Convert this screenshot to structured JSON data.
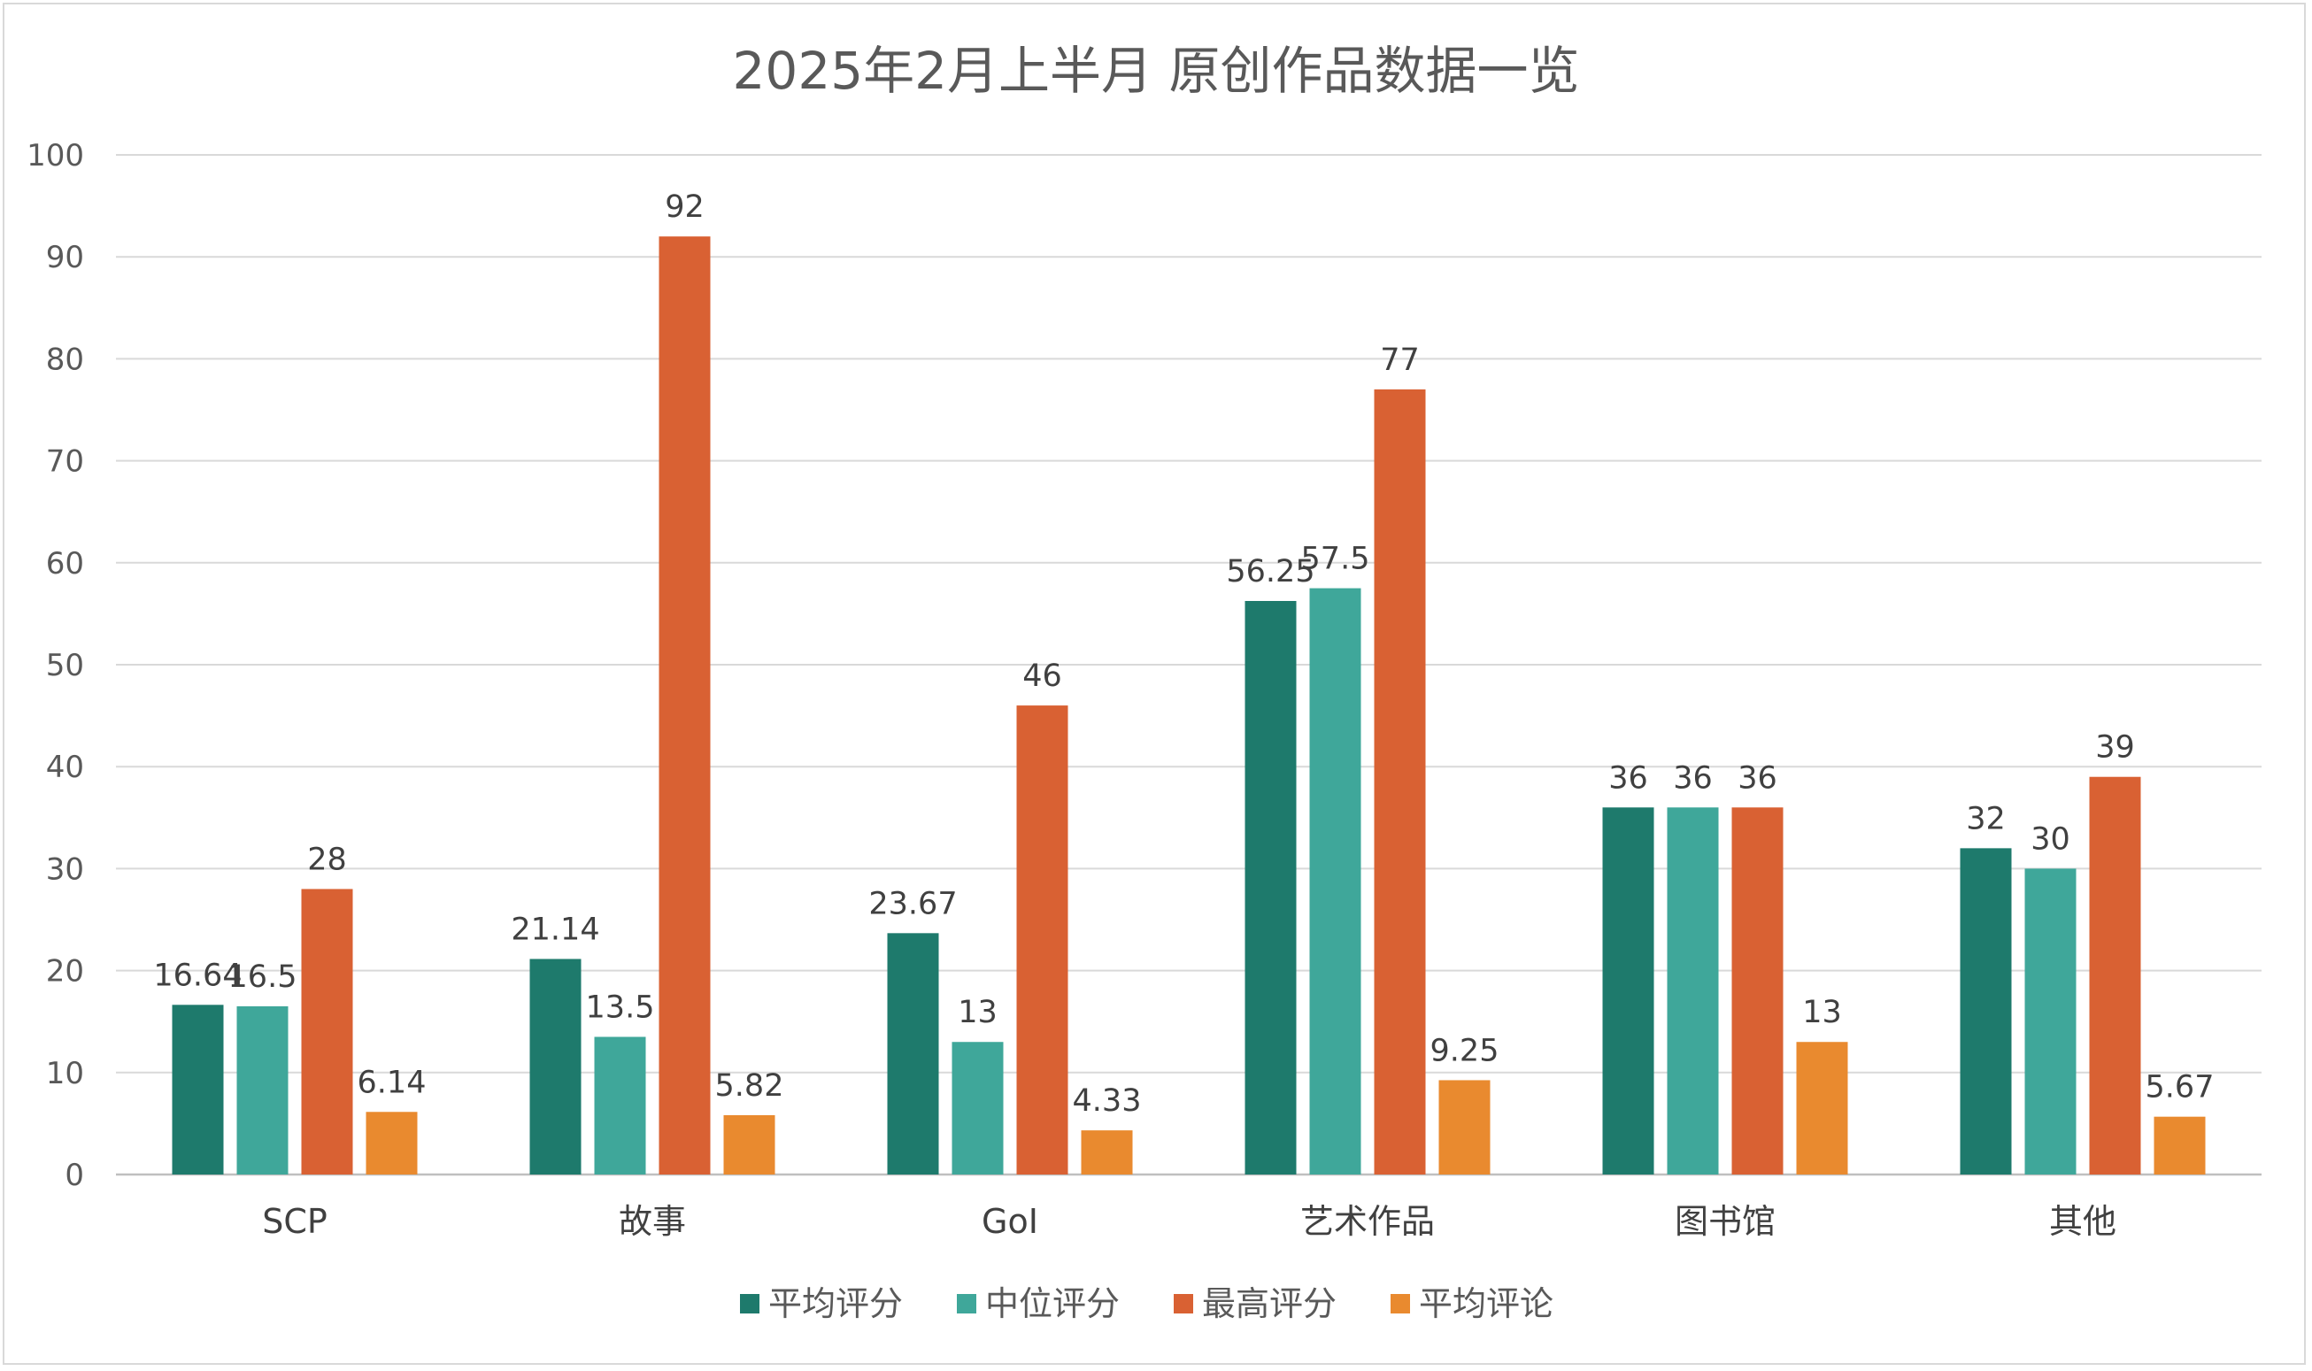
{
  "chart_data": {
    "type": "bar",
    "title": "2025年2月上半月 原创作品数据一览",
    "xlabel": "",
    "ylabel": "",
    "ylim": [
      0,
      100
    ],
    "yticks": [
      0,
      10,
      20,
      30,
      40,
      50,
      60,
      70,
      80,
      90,
      100
    ],
    "grid": true,
    "legend_position": "bottom",
    "categories": [
      "SCP",
      "故事",
      "GoI",
      "艺术作品",
      "图书馆",
      "其他"
    ],
    "series": [
      {
        "name": "平均评分",
        "color": "#1e7a6c",
        "values": [
          16.64,
          21.14,
          23.67,
          56.25,
          36,
          32
        ]
      },
      {
        "name": "中位评分",
        "color": "#3fa79a",
        "values": [
          16.5,
          13.5,
          13,
          57.5,
          36,
          30
        ]
      },
      {
        "name": "最高评分",
        "color": "#d96133",
        "values": [
          28,
          92,
          46,
          77,
          36,
          39
        ]
      },
      {
        "name": "平均评论",
        "color": "#e98a2f",
        "values": [
          6.14,
          5.82,
          4.33,
          9.25,
          13,
          5.67
        ]
      }
    ]
  },
  "colors": {
    "grid": "#d9d9d9",
    "axis": "#bfbfbf",
    "border": "#d9d9d9"
  }
}
